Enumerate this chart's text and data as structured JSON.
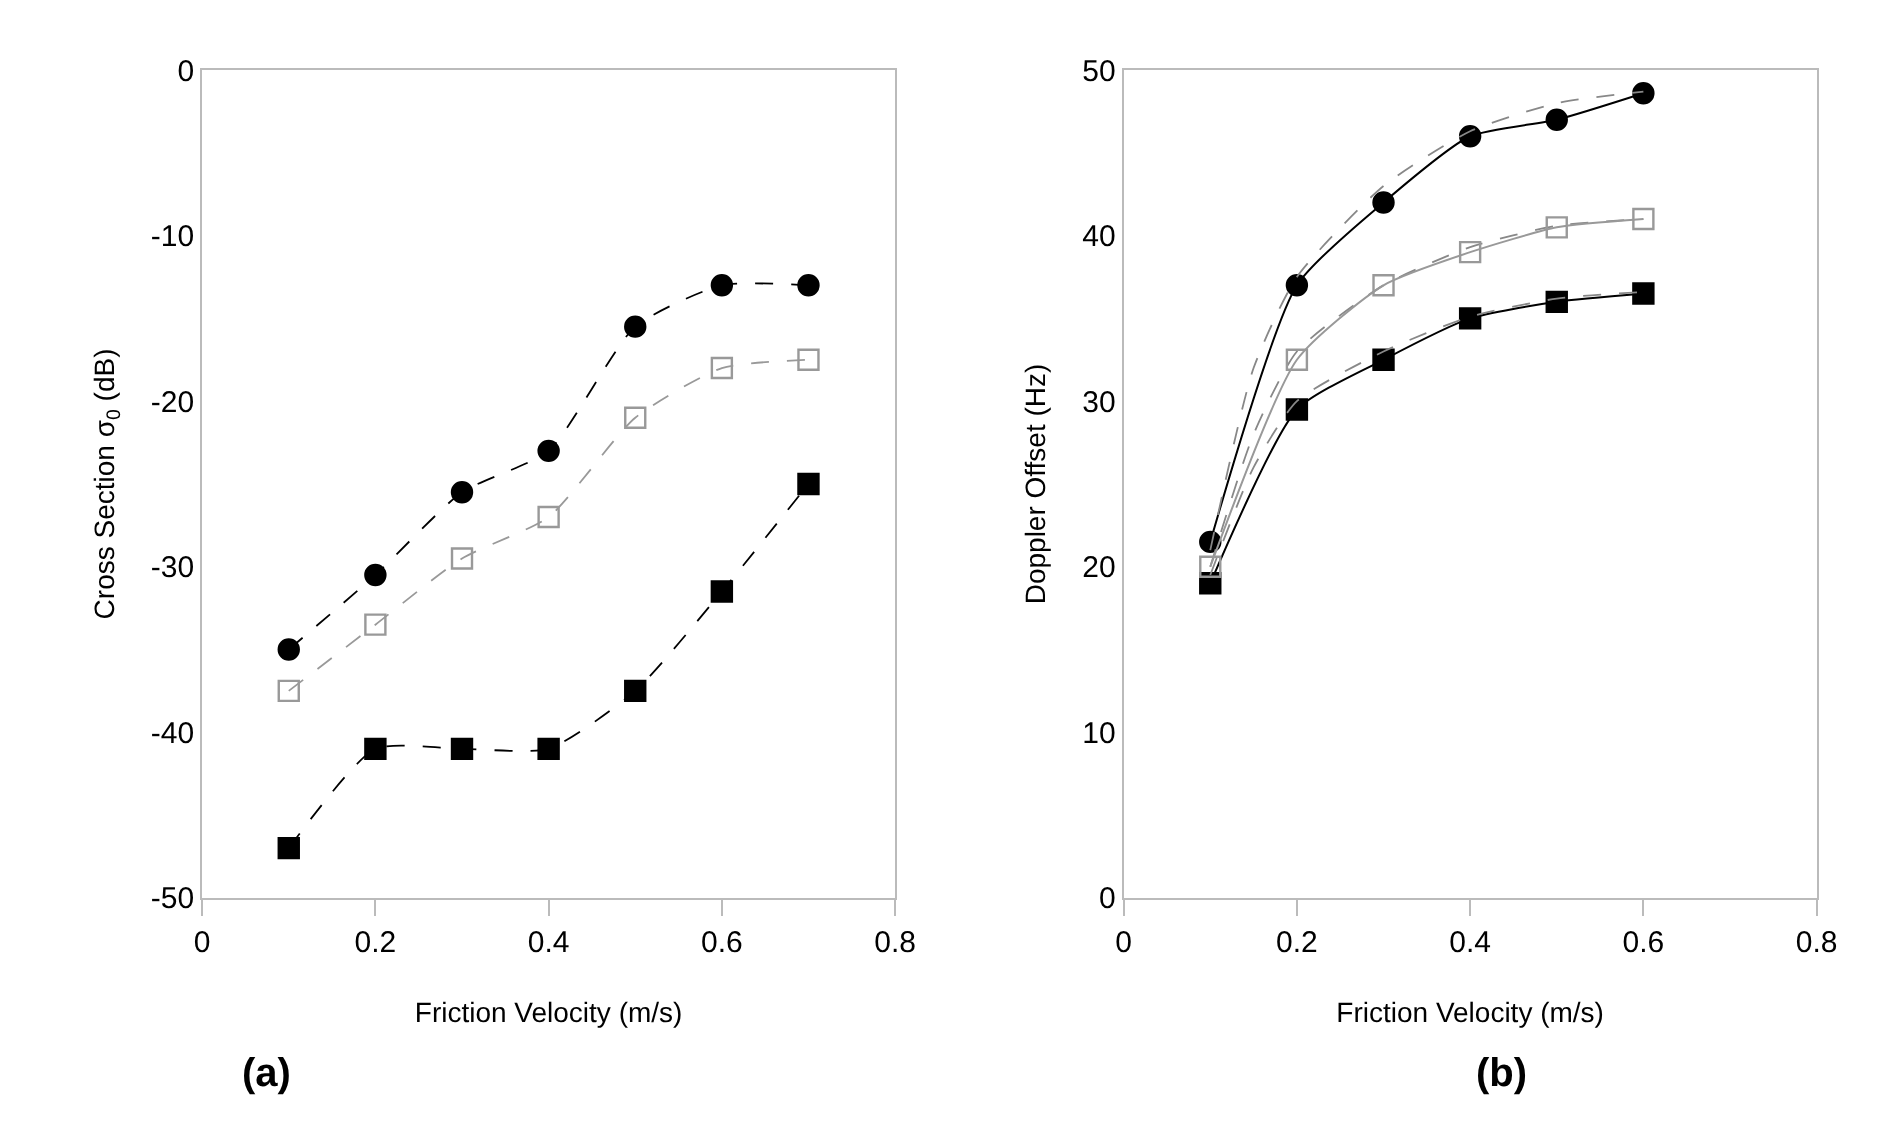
{
  "chart_data": [
    {
      "type": "line",
      "xlabel": "Friction Velocity (m/s)",
      "ylabel": "Cross Section σ$_{0}$ (dB)",
      "annotations": [
        "(a)"
      ],
      "x": [
        0.1,
        0.2,
        0.3,
        0.4,
        0.5,
        0.6,
        0.7
      ],
      "xlim": [
        0,
        0.8
      ],
      "xticks": [
        0,
        0.2,
        0.4,
        0.6,
        0.8
      ],
      "ylim": [
        -50,
        0
      ],
      "yticks": [
        -50,
        -40,
        -30,
        -20,
        -10,
        0
      ],
      "line_style": "dashed",
      "series": [
        {
          "color": "#000000",
          "marker": "circle",
          "values": [
            -35,
            -30.5,
            -25.5,
            -23,
            -15.5,
            -13,
            -13
          ]
        },
        {
          "color": "#999999",
          "marker": "square-open",
          "values": [
            -37.5,
            -33.5,
            -29.5,
            -27,
            -21,
            -18,
            -17.5
          ]
        },
        {
          "color": "#000000",
          "marker": "square",
          "values": [
            -47,
            -41,
            -41,
            -41,
            -37.5,
            -31.5,
            -25
          ]
        }
      ]
    },
    {
      "type": "line",
      "xlabel": "Friction Velocity (m/s)",
      "ylabel": "Doppler Offset (Hz)",
      "annotations": [
        "(b)"
      ],
      "x": [
        0.1,
        0.2,
        0.3,
        0.4,
        0.5,
        0.6
      ],
      "xlim": [
        0,
        0.8
      ],
      "xticks": [
        0,
        0.2,
        0.4,
        0.6,
        0.8
      ],
      "ylim": [
        0,
        50
      ],
      "yticks": [
        0,
        10,
        20,
        30,
        40,
        50
      ],
      "line_style": "solid",
      "series": [
        {
          "color": "#000000",
          "marker": "circle",
          "values": [
            21.5,
            37,
            42,
            46,
            47,
            48.6
          ]
        },
        {
          "color": "#999999",
          "marker": "square-open",
          "values": [
            20,
            32.5,
            37,
            39,
            40.5,
            41
          ]
        },
        {
          "color": "#000000",
          "marker": "square",
          "values": [
            19,
            29.5,
            32.5,
            35,
            36,
            36.5
          ]
        },
        {
          "type": "line",
          "color": "#888888",
          "marker": "none",
          "line_style": "dashed",
          "x": [
            0.1,
            0.15,
            0.2,
            0.3,
            0.4,
            0.5,
            0.6
          ],
          "values": [
            21,
            32,
            37.5,
            43,
            46.3,
            48,
            48.7
          ]
        },
        {
          "type": "line",
          "color": "#888888",
          "marker": "none",
          "line_style": "dashed",
          "x": [
            0.1,
            0.15,
            0.2,
            0.3,
            0.4,
            0.5,
            0.6
          ],
          "values": [
            20,
            28,
            33,
            37,
            39.3,
            40.6,
            41
          ]
        },
        {
          "type": "line",
          "color": "#888888",
          "marker": "none",
          "line_style": "dashed",
          "x": [
            0.1,
            0.15,
            0.2,
            0.3,
            0.4,
            0.5,
            0.6
          ],
          "values": [
            19.5,
            26,
            30,
            33,
            35.1,
            36.2,
            36.6
          ]
        }
      ]
    }
  ]
}
